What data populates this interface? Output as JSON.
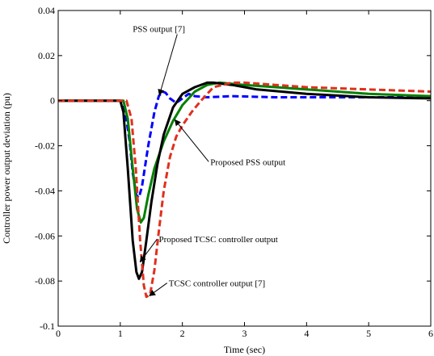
{
  "chart_data": {
    "type": "line",
    "title": "",
    "xlabel": "Time (sec)",
    "ylabel": "Controller power output deviation (pu)",
    "xlim": [
      0,
      6
    ],
    "ylim": [
      -0.1,
      0.04
    ],
    "xticks": [
      "0",
      "1",
      "2",
      "3",
      "4",
      "5",
      "6"
    ],
    "yticks": [
      "-0.1",
      "-0.08",
      "-0.06",
      "-0.04",
      "-0.02",
      "0",
      "0.02",
      "0.04"
    ],
    "grid": false,
    "legend": "none",
    "series": [
      {
        "id": "pss7",
        "color": "#0000ff",
        "style": "dashed",
        "x": [
          0,
          1.0,
          1.08,
          1.15,
          1.2,
          1.26,
          1.3,
          1.35,
          1.45,
          1.55,
          1.62,
          1.68,
          1.73,
          1.8,
          1.9,
          2.0,
          2.1,
          2.2,
          2.4,
          2.8,
          3.5,
          4.5,
          6.0
        ],
        "y": [
          0,
          0,
          -0.005,
          -0.018,
          -0.032,
          -0.042,
          -0.043,
          -0.038,
          -0.02,
          -0.005,
          0.002,
          0.004,
          0.0035,
          0.001,
          -0.001,
          0.001,
          0.003,
          0.002,
          0.0015,
          0.002,
          0.0015,
          0.0015,
          0.0015
        ]
      },
      {
        "id": "proposed-pss",
        "color": "#008000",
        "style": "solid",
        "x": [
          0,
          1.05,
          1.12,
          1.2,
          1.27,
          1.33,
          1.38,
          1.45,
          1.55,
          1.7,
          1.85,
          2.0,
          2.2,
          2.4,
          2.6,
          3.0,
          4.0,
          5.0,
          6.0
        ],
        "y": [
          0,
          0,
          -0.008,
          -0.03,
          -0.048,
          -0.054,
          -0.052,
          -0.042,
          -0.03,
          -0.018,
          -0.009,
          -0.002,
          0.004,
          0.007,
          0.008,
          0.007,
          0.005,
          0.003,
          0.002
        ]
      },
      {
        "id": "proposed-tcsc",
        "color": "#000000",
        "style": "solid",
        "x": [
          0,
          1.0,
          1.05,
          1.12,
          1.2,
          1.26,
          1.3,
          1.35,
          1.42,
          1.5,
          1.6,
          1.7,
          1.85,
          2.0,
          2.2,
          2.4,
          2.5,
          2.8,
          3.2,
          4.0,
          5.0,
          6.0
        ],
        "y": [
          0,
          0,
          -0.005,
          -0.03,
          -0.062,
          -0.076,
          -0.079,
          -0.076,
          -0.062,
          -0.045,
          -0.028,
          -0.015,
          -0.003,
          0.003,
          0.006,
          0.008,
          0.008,
          0.007,
          0.005,
          0.003,
          0.0015,
          0.001
        ]
      },
      {
        "id": "tcsc7",
        "color": "#e0301e",
        "style": "dashed",
        "x": [
          0,
          1.1,
          1.18,
          1.25,
          1.32,
          1.38,
          1.42,
          1.48,
          1.55,
          1.62,
          1.7,
          1.8,
          1.9,
          2.0,
          2.15,
          2.3,
          2.5,
          2.8,
          3.0,
          3.5,
          4.0,
          5.0,
          6.0
        ],
        "y": [
          0,
          0,
          -0.008,
          -0.03,
          -0.062,
          -0.082,
          -0.087,
          -0.086,
          -0.075,
          -0.058,
          -0.04,
          -0.025,
          -0.016,
          -0.011,
          -0.005,
          0.0,
          0.006,
          0.008,
          0.008,
          0.007,
          0.006,
          0.005,
          0.004
        ]
      }
    ],
    "annotations": [
      {
        "id": "pss7",
        "text": "PSS output [7]",
        "x": 1.2,
        "y": 0.0305,
        "target": [
          1.63,
          0.0025
        ]
      },
      {
        "id": "proposed-pss",
        "text": "Proposed PSS output",
        "x": 2.45,
        "y": -0.0285,
        "target": [
          1.88,
          -0.0085
        ]
      },
      {
        "id": "proposed-tcsc",
        "text": "Proposed TCSC controller output",
        "x": 1.62,
        "y": -0.0628,
        "target": [
          1.32,
          -0.0715
        ]
      },
      {
        "id": "tcsc7",
        "text": "TCSC controller output [7]",
        "x": 1.78,
        "y": -0.0823,
        "target": [
          1.47,
          -0.0865
        ]
      }
    ]
  }
}
